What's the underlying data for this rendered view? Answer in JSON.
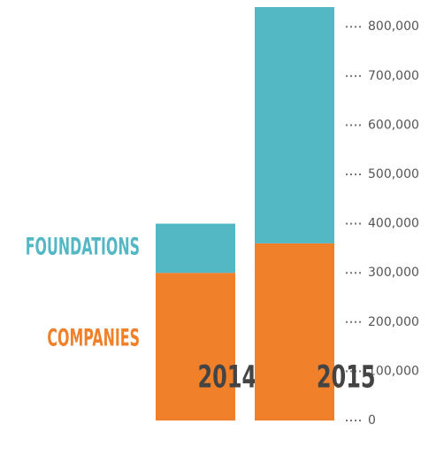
{
  "chart_data": {
    "type": "stacked_bar",
    "categories": [
      "2014",
      "2015"
    ],
    "series": [
      {
        "name": "COMPANIES",
        "color": "#f0812a",
        "values": [
          300000,
          360000
        ]
      },
      {
        "name": "FOUNDATIONS",
        "color": "#53b8c4",
        "values": [
          100000,
          480000
        ]
      }
    ],
    "ylim": [
      0,
      840000
    ],
    "yticks": [
      0,
      {
        "value": 100000,
        "label": "100,000"
      },
      {
        "value": 200000,
        "label": "200,000"
      },
      {
        "value": 300000,
        "label": "300,000"
      },
      {
        "value": 400000,
        "label": "400,000"
      },
      {
        "value": 500000,
        "label": "500,000"
      },
      {
        "value": 600000,
        "label": "600,000"
      },
      {
        "value": 700000,
        "label": "700,000"
      },
      {
        "value": 800000,
        "label": "800,000"
      }
    ]
  }
}
